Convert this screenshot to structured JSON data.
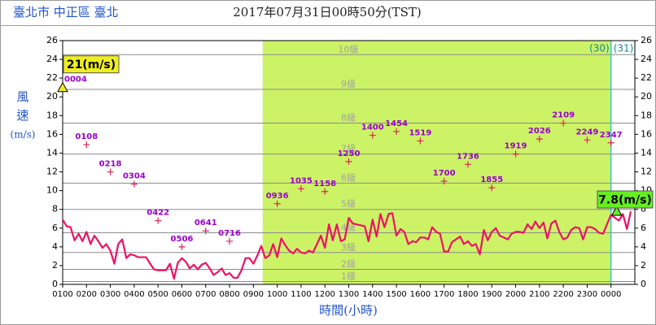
{
  "chart_data": {
    "type": "wind",
    "location": "臺北市 中正區 臺北",
    "title": "2017年07月31日00時50分(TST)",
    "y_label": [
      "風",
      "速",
      "(m/s)"
    ],
    "x_label": "時間(小時)",
    "xlim": [
      1,
      25
    ],
    "ylim": [
      0,
      26
    ],
    "yticks": [
      0,
      2,
      4,
      6,
      8,
      10,
      12,
      14,
      16,
      18,
      20,
      22,
      24,
      26
    ],
    "xticks": [
      {
        "value": 1,
        "label": "0100"
      },
      {
        "value": 2,
        "label": "0200"
      },
      {
        "value": 3,
        "label": "0300"
      },
      {
        "value": 4,
        "label": "0400"
      },
      {
        "value": 5,
        "label": "0500"
      },
      {
        "value": 6,
        "label": "0600"
      },
      {
        "value": 7,
        "label": "0700"
      },
      {
        "value": 8,
        "label": "0800"
      },
      {
        "value": 9,
        "label": "0900"
      },
      {
        "value": 10,
        "label": "1000"
      },
      {
        "value": 11,
        "label": "1100"
      },
      {
        "value": 12,
        "label": "1200"
      },
      {
        "value": 13,
        "label": "1300"
      },
      {
        "value": 14,
        "label": "1400"
      },
      {
        "value": 15,
        "label": "1500"
      },
      {
        "value": 16,
        "label": "1600"
      },
      {
        "value": 17,
        "label": "1700"
      },
      {
        "value": 18,
        "label": "1800"
      },
      {
        "value": 19,
        "label": "1900"
      },
      {
        "value": 20,
        "label": "2000"
      },
      {
        "value": 21,
        "label": "2100"
      },
      {
        "value": 22,
        "label": "2200"
      },
      {
        "value": 23,
        "label": "2300"
      },
      {
        "value": 24,
        "label": "0000"
      }
    ],
    "shade": {
      "range": [
        9.39,
        24
      ],
      "color": "#ccf266"
    },
    "day_divider": {
      "x": 24,
      "left_label": "(30)",
      "right_label": "(31)",
      "color": "#33cccc"
    },
    "levels": [
      {
        "value": 0.3,
        "label": "1級"
      },
      {
        "value": 1.6,
        "label": "2級"
      },
      {
        "value": 3.4,
        "label": "3級"
      },
      {
        "value": 5.5,
        "label": "4級"
      },
      {
        "value": 8.0,
        "label": "5級"
      },
      {
        "value": 10.8,
        "label": "6級"
      },
      {
        "value": 13.9,
        "label": "7級"
      },
      {
        "value": 17.2,
        "label": "8級"
      },
      {
        "value": 20.8,
        "label": "9級"
      },
      {
        "value": 24.5,
        "label": "10級"
      }
    ],
    "series": [
      {
        "color": "#ee1166",
        "x": [
          1,
          1.17,
          1.33,
          1.5,
          1.67,
          1.83,
          2,
          2.17,
          2.33,
          2.5,
          2.67,
          2.83,
          3,
          3.17,
          3.33,
          3.5,
          3.67,
          3.83,
          4,
          4.17,
          4.33,
          4.5,
          4.67,
          4.83,
          5,
          5.17,
          5.33,
          5.5,
          5.67,
          5.83,
          6,
          6.17,
          6.33,
          6.5,
          6.67,
          6.83,
          7,
          7.17,
          7.33,
          7.5,
          7.67,
          7.83,
          8,
          8.17,
          8.33,
          8.5,
          8.67,
          8.83,
          9,
          9.17,
          9.33,
          9.5,
          9.67,
          9.83,
          10,
          10.17,
          10.33,
          10.5,
          10.67,
          10.83,
          11,
          11.17,
          11.33,
          11.5,
          11.67,
          11.83,
          12,
          12.17,
          12.33,
          12.5,
          12.67,
          12.83,
          13,
          13.17,
          13.33,
          13.5,
          13.67,
          13.83,
          14,
          14.17,
          14.33,
          14.5,
          14.67,
          14.83,
          15,
          15.17,
          15.33,
          15.5,
          15.67,
          15.83,
          16,
          16.17,
          16.33,
          16.5,
          16.67,
          16.83,
          17,
          17.17,
          17.33,
          17.5,
          17.67,
          17.83,
          18,
          18.17,
          18.33,
          18.5,
          18.67,
          18.83,
          19,
          19.17,
          19.33,
          19.5,
          19.67,
          19.83,
          20,
          20.17,
          20.33,
          20.5,
          20.67,
          20.83,
          21,
          21.17,
          21.33,
          21.5,
          21.67,
          21.83,
          22,
          22.17,
          22.33,
          22.5,
          22.67,
          22.83,
          23,
          23.17,
          23.33,
          23.5,
          23.67,
          23.83,
          24,
          24.17,
          24.33,
          24.5,
          24.67,
          24.83
        ],
        "values": [
          6.9,
          6.2,
          6.1,
          4.7,
          5.4,
          4.6,
          5.6,
          4.3,
          5.2,
          4.6,
          3.9,
          4.3,
          3.6,
          2.2,
          4.3,
          4.8,
          2.8,
          3.2,
          3.1,
          2.9,
          2.9,
          2.9,
          2.2,
          1.6,
          1.5,
          1.5,
          1.5,
          2.2,
          0.6,
          2.3,
          2.8,
          2.4,
          1.7,
          2.1,
          1.6,
          2.1,
          2.3,
          1.7,
          1.0,
          1.3,
          1.7,
          1.0,
          1.2,
          0.7,
          0.7,
          1.5,
          2.8,
          2.8,
          2.2,
          3.1,
          4.1,
          2.8,
          3.1,
          4.3,
          2.9,
          4.9,
          4.2,
          3.6,
          3.3,
          3.8,
          3.4,
          3.3,
          3.6,
          3.4,
          4.3,
          5.2,
          3.9,
          6.4,
          4.7,
          6.4,
          4.6,
          4.8,
          7.1,
          6.5,
          6.4,
          6.3,
          6.2,
          4.6,
          6.9,
          5.1,
          7.5,
          6.1,
          7.5,
          7.6,
          5.2,
          5.9,
          5.6,
          4.3,
          4.6,
          4.5,
          5.0,
          5.0,
          4.8,
          6.1,
          5.6,
          5.4,
          3.5,
          3.5,
          4.5,
          4.8,
          5.1,
          4.3,
          4.6,
          4.1,
          4.3,
          3.2,
          5.8,
          4.7,
          5.6,
          6.0,
          5.2,
          5.0,
          4.8,
          5.4,
          5.6,
          5.6,
          5.5,
          6.4,
          5.9,
          6.7,
          6.0,
          6.6,
          4.9,
          6.5,
          6.8,
          5.6,
          4.8,
          5.0,
          5.8,
          6.1,
          6.0,
          4.8,
          6.1,
          6.1,
          5.9,
          5.5,
          5.4,
          6.4,
          7.4,
          7.1,
          6.8,
          7.5,
          5.9,
          7.8
        ]
      },
      {
        "color": "#9900cc",
        "x": [
          1,
          2,
          3,
          4,
          5,
          6,
          7,
          8,
          10,
          11,
          12,
          13,
          14,
          15,
          16,
          17,
          18,
          19,
          20,
          21,
          22,
          23,
          24
        ],
        "values": [
          21.0,
          14.9,
          12.0,
          10.7,
          6.8,
          4.0,
          5.7,
          4.6,
          8.6,
          10.2,
          9.9,
          13.1,
          15.9,
          16.3,
          15.3,
          11.0,
          12.8,
          10.3,
          13.9,
          15.5,
          17.2,
          15.4,
          15.1
        ],
        "labels": [
          "0004",
          "0108",
          "0218",
          "0304",
          "0422",
          "0506",
          "0641",
          "0716",
          "0936",
          "1035",
          "1158",
          "1250",
          "1400",
          "1454",
          "1519",
          "1700",
          "1736",
          "1855",
          "1919",
          "2026",
          "2109",
          "2249",
          "2347"
        ]
      }
    ],
    "annotations": [
      {
        "label": "21(m/s)",
        "x": 1,
        "y": 21.0,
        "color": "#eeee22"
      },
      {
        "label": "7.8(m/s)",
        "x": 24.24,
        "y": 7.8,
        "color": "#66ee22"
      }
    ]
  }
}
